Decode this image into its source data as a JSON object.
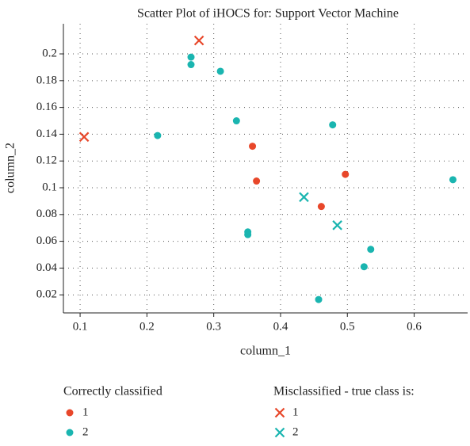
{
  "chart_data": {
    "type": "scatter",
    "title": "Scatter Plot of iHOCS for: Support Vector Machine",
    "x_label": "column_1",
    "y_label": "column_2",
    "xlim": [
      0.075,
      0.68
    ],
    "ylim": [
      0.0065,
      0.2225
    ],
    "xticks": [
      0.1,
      0.2,
      0.3,
      0.4,
      0.5,
      0.6
    ],
    "yticks": [
      0.02,
      0.04,
      0.06,
      0.08,
      0.1,
      0.12,
      0.14,
      0.16,
      0.18,
      0.2
    ],
    "grid": true,
    "groups": [
      {
        "title": "Correctly classified",
        "marker": "circle",
        "series": [
          {
            "name": "1",
            "color": "#e8472a",
            "x": [
              0.358,
              0.364,
              0.461,
              0.497
            ],
            "y": [
              0.131,
              0.105,
              0.086,
              0.11
            ]
          },
          {
            "name": "2",
            "color": "#1ab5b0",
            "x": [
              0.266,
              0.266,
              0.31,
              0.334,
              0.216,
              0.478,
              0.658,
              0.351,
              0.351,
              0.535,
              0.525,
              0.457
            ],
            "y": [
              0.1976,
              0.192,
              0.187,
              0.15,
              0.139,
              0.147,
              0.106,
              0.067,
              0.065,
              0.054,
              0.041,
              0.0165
            ]
          }
        ]
      },
      {
        "title": "Misclassified - true class is:",
        "marker": "cross",
        "series": [
          {
            "name": "1",
            "color": "#e8472a",
            "x": [
              0.278,
              0.106
            ],
            "y": [
              0.21,
              0.138
            ]
          },
          {
            "name": "2",
            "color": "#1ab5b0",
            "x": [
              0.435,
              0.485
            ],
            "y": [
              0.093,
              0.072
            ]
          }
        ]
      }
    ]
  }
}
